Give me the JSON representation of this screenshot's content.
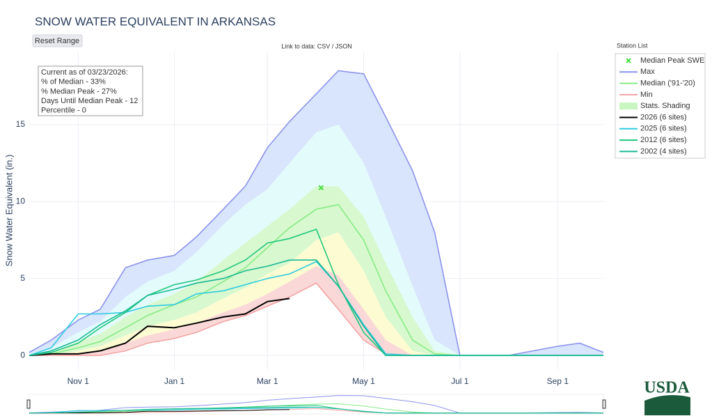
{
  "chart_data": {
    "type": "line",
    "title": "SNOW WATER EQUIVALENT IN ARKANSAS",
    "button": "Reset Range",
    "link_text": "Link to data: CSV / JSON",
    "info": [
      "Current as of 03/23/2026:",
      "% of Median - 33%",
      "% Median Peak - 27%",
      "Days Until Median Peak - 12",
      "Percentile - 0"
    ],
    "legend_title": "Station List",
    "legend": "right",
    "logo": "USDA",
    "y_label": "Snow Water Equivalent (in.)",
    "x": [
      "Oct 1",
      "Oct 15",
      "Nov 1",
      "Nov 15",
      "Dec 1",
      "Dec 15",
      "Jan 1",
      "Jan 15",
      "Feb 1",
      "Feb 15",
      "Mar 1",
      "Mar 15",
      "Apr 1",
      "Apr 15",
      "May 1",
      "May 15",
      "Jun 1",
      "Jun 15",
      "Jul 1",
      "Aug 1",
      "Sep 1",
      "Sep 15",
      "Sep 30"
    ],
    "xlim": [
      "Oct 1",
      "Sep 30"
    ],
    "xticks": [
      "Nov 1",
      "Jan 1",
      "Mar 1",
      "May 1",
      "Jul 1",
      "Sep 1"
    ],
    "ylim": [
      -0.9,
      19.7
    ],
    "yticks": [
      0,
      5,
      10,
      15
    ],
    "grid": true,
    "median_peak": {
      "name": "Median Peak SWE",
      "x": "Apr 4",
      "value": 10.9,
      "color": "#44e044"
    },
    "shading": {
      "name": "Stats. Shading",
      "color": "#c9f5c0",
      "boundaries": [
        [
          0.1,
          0.5,
          1.5,
          2.2,
          3.8,
          4.8,
          5.5,
          6.7,
          8.5,
          9.8,
          10.8,
          12.5,
          14.5,
          15.0,
          12.5,
          9.0,
          4.5,
          1.0,
          0,
          0,
          0,
          0,
          0
        ],
        [
          0,
          0.2,
          0.9,
          1.4,
          2.5,
          3.3,
          4.0,
          4.8,
          6.2,
          7.3,
          8.4,
          9.5,
          11.0,
          11.0,
          9.0,
          6.0,
          2.5,
          0.3,
          0,
          0,
          0,
          0,
          0
        ],
        [
          0,
          0,
          0.3,
          0.6,
          1.3,
          1.9,
          2.3,
          2.8,
          3.7,
          4.4,
          5.3,
          6.0,
          7.5,
          8.0,
          5.5,
          2.5,
          0.3,
          0,
          0,
          0,
          0,
          0,
          0
        ],
        [
          0,
          0,
          0.1,
          0.3,
          0.8,
          1.3,
          1.7,
          2.1,
          2.8,
          3.3,
          4.0,
          4.8,
          5.8,
          5.2,
          3.0,
          1.0,
          0,
          0,
          0,
          0,
          0,
          0,
          0
        ]
      ],
      "fills": [
        "#d8e5fc",
        "#e3fbfb",
        "#d8f8cf",
        "#fdfbd2",
        "#fbd8d8"
      ]
    },
    "series": [
      {
        "name": "Max",
        "color": "#8c93ec",
        "values": [
          0.2,
          1.0,
          2.3,
          3.0,
          5.7,
          6.2,
          6.5,
          7.7,
          9.5,
          11.0,
          13.5,
          15.2,
          17.0,
          18.5,
          18.3,
          15.5,
          12.0,
          8.0,
          0,
          0,
          0.6,
          0.8,
          0.2
        ]
      },
      {
        "name": "Median ('91-'20)",
        "color": "#86ec86",
        "values": [
          0,
          0.1,
          0.5,
          0.9,
          1.8,
          2.6,
          3.3,
          3.8,
          4.8,
          5.7,
          7.0,
          8.3,
          9.5,
          9.8,
          7.5,
          4.2,
          1.0,
          0.1,
          0,
          0,
          0,
          0,
          0
        ]
      },
      {
        "name": "Min",
        "color": "#f4a3a3",
        "values": [
          0,
          0,
          0,
          0,
          0.3,
          0.8,
          1.1,
          1.5,
          2.2,
          2.6,
          3.2,
          3.8,
          4.7,
          3.0,
          1.0,
          0.1,
          0,
          0,
          0,
          0,
          0,
          0,
          0
        ]
      },
      {
        "name": "2026 (6 sites)",
        "color": "#000000",
        "values": [
          0,
          0.1,
          0.1,
          0.3,
          0.8,
          1.9,
          1.8,
          2.1,
          2.5,
          2.7,
          3.5,
          3.7,
          null,
          null,
          null,
          null,
          null,
          null,
          null,
          null,
          null,
          null,
          null
        ]
      },
      {
        "name": "2025 (6 sites)",
        "color": "#2ccbe0",
        "values": [
          0,
          0.5,
          2.7,
          2.7,
          2.8,
          3.2,
          3.3,
          4.0,
          4.2,
          4.6,
          5.0,
          5.3,
          6.1,
          4.5,
          2.0,
          0.1,
          0,
          0,
          0,
          0,
          0,
          0,
          0
        ]
      },
      {
        "name": "2012 (6 sites)",
        "color": "#1fc77c",
        "values": [
          0,
          0.2,
          0.8,
          1.8,
          2.8,
          3.9,
          4.6,
          4.9,
          5.5,
          6.2,
          7.3,
          7.6,
          8.2,
          4.6,
          1.5,
          0,
          0,
          0,
          0,
          0,
          0,
          0,
          0
        ]
      },
      {
        "name": "2002 (4 sites)",
        "color": "#18b894",
        "values": [
          0,
          0.3,
          1.0,
          2.0,
          2.9,
          3.9,
          4.3,
          4.7,
          5.0,
          5.5,
          5.8,
          6.2,
          6.2,
          4.5,
          1.9,
          0,
          0,
          0,
          0,
          0,
          0,
          0,
          0
        ]
      }
    ]
  }
}
